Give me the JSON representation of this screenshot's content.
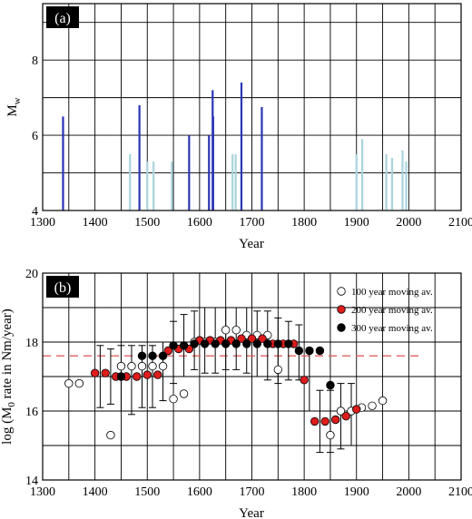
{
  "chart_data": [
    {
      "type": "bar",
      "panel_label": "(a)",
      "xlabel": "Year",
      "ylabel_main": "M",
      "ylabel_sub": "w",
      "xlim": [
        1300,
        2100
      ],
      "ylim": [
        4,
        9.5
      ],
      "xticks": [
        1300,
        1400,
        1500,
        1600,
        1700,
        1800,
        1900,
        2000,
        2100
      ],
      "yticks": [
        4,
        6,
        8
      ],
      "grid": true,
      "colors": {
        "historical": "#2a35b5",
        "instrumental": "#a9d3dc"
      },
      "series": [
        {
          "role": "historical",
          "x": [
            1339,
            1485,
            1580,
            1618,
            1625,
            1626,
            1680,
            1719
          ],
          "values": [
            6.5,
            6.8,
            6.0,
            6.0,
            7.2,
            6.5,
            7.4,
            6.75
          ]
        },
        {
          "role": "instrumental",
          "x": [
            1467,
            1500,
            1512,
            1547,
            1663,
            1669,
            1900,
            1911,
            1957,
            1968,
            1988,
            1995
          ],
          "values": [
            5.5,
            5.3,
            5.3,
            5.3,
            5.5,
            5.5,
            5.5,
            5.9,
            5.5,
            5.4,
            5.6,
            5.3
          ]
        }
      ]
    },
    {
      "type": "scatter",
      "panel_label": "(b)",
      "xlabel": "Year",
      "ylabel_main": "log (M",
      "ylabel_sub": "0",
      "ylabel_tail": " rate in Nm/year)",
      "xlim": [
        1300,
        2100
      ],
      "ylim": [
        14,
        20
      ],
      "xticks": [
        1300,
        1400,
        1500,
        1600,
        1700,
        1800,
        1900,
        2000,
        2100
      ],
      "yticks": [
        14,
        16,
        18,
        20
      ],
      "grid": true,
      "legend_position": "top-right",
      "reference_line": {
        "y": 17.6,
        "x": [
          1300,
          2020
        ],
        "color": "#e06060",
        "style": "dashed"
      },
      "errorbars": [
        {
          "x": 1410,
          "low": 16.1,
          "high": 17.9
        },
        {
          "x": 1430,
          "low": 16.2,
          "high": 17.8
        },
        {
          "x": 1450,
          "low": 16.0,
          "high": 17.9
        },
        {
          "x": 1470,
          "low": 15.9,
          "high": 17.9
        },
        {
          "x": 1490,
          "low": 16.1,
          "high": 17.9
        },
        {
          "x": 1510,
          "low": 16.1,
          "high": 17.9
        },
        {
          "x": 1530,
          "low": 16.3,
          "high": 18.0
        },
        {
          "x": 1550,
          "low": 16.8,
          "high": 18.6
        },
        {
          "x": 1570,
          "low": 17.0,
          "high": 18.8
        },
        {
          "x": 1590,
          "low": 17.2,
          "high": 18.9
        },
        {
          "x": 1610,
          "low": 17.1,
          "high": 19.0
        },
        {
          "x": 1630,
          "low": 17.1,
          "high": 19.0
        },
        {
          "x": 1650,
          "low": 17.2,
          "high": 19.0
        },
        {
          "x": 1670,
          "low": 17.2,
          "high": 19.0
        },
        {
          "x": 1690,
          "low": 17.1,
          "high": 19.0
        },
        {
          "x": 1710,
          "low": 17.0,
          "high": 18.9
        },
        {
          "x": 1730,
          "low": 16.9,
          "high": 18.9
        },
        {
          "x": 1750,
          "low": 16.8,
          "high": 18.7
        },
        {
          "x": 1770,
          "low": 16.9,
          "high": 18.6
        },
        {
          "x": 1790,
          "low": 16.9,
          "high": 18.5
        },
        {
          "x": 1810,
          "low": 16.0,
          "high": 17.8
        },
        {
          "x": 1830,
          "low": 14.8,
          "high": 16.6
        },
        {
          "x": 1850,
          "low": 14.8,
          "high": 16.6
        },
        {
          "x": 1870,
          "low": 14.9,
          "high": 16.8
        },
        {
          "x": 1890,
          "low": 15.0,
          "high": 16.8
        }
      ],
      "series": [
        {
          "name": "100 year moving av.",
          "color": "#ffffff",
          "points": [
            [
              1350,
              16.8
            ],
            [
              1370,
              16.8
            ],
            [
              1430,
              15.3
            ],
            [
              1450,
              17.3
            ],
            [
              1470,
              17.3
            ],
            [
              1490,
              17.3
            ],
            [
              1510,
              17.3
            ],
            [
              1530,
              17.3
            ],
            [
              1550,
              16.35
            ],
            [
              1570,
              16.5
            ],
            [
              1590,
              18.0
            ],
            [
              1610,
              18.0
            ],
            [
              1630,
              18.0
            ],
            [
              1650,
              18.35
            ],
            [
              1670,
              18.35
            ],
            [
              1690,
              18.2
            ],
            [
              1710,
              18.2
            ],
            [
              1730,
              18.2
            ],
            [
              1750,
              17.2
            ],
            [
              1850,
              15.3
            ],
            [
              1870,
              16.0
            ],
            [
              1890,
              16.0
            ],
            [
              1910,
              16.1
            ],
            [
              1930,
              16.15
            ],
            [
              1950,
              16.3
            ]
          ]
        },
        {
          "name": "200 year moving av.",
          "color": "#dd1c1c",
          "points": [
            [
              1400,
              17.1
            ],
            [
              1420,
              17.1
            ],
            [
              1440,
              17.0
            ],
            [
              1460,
              17.0
            ],
            [
              1480,
              17.0
            ],
            [
              1500,
              17.05
            ],
            [
              1520,
              17.05
            ],
            [
              1540,
              17.75
            ],
            [
              1560,
              17.8
            ],
            [
              1580,
              17.8
            ],
            [
              1600,
              18.05
            ],
            [
              1620,
              18.05
            ],
            [
              1640,
              18.05
            ],
            [
              1660,
              18.05
            ],
            [
              1680,
              18.1
            ],
            [
              1700,
              18.1
            ],
            [
              1720,
              18.1
            ],
            [
              1740,
              17.95
            ],
            [
              1760,
              17.95
            ],
            [
              1780,
              17.95
            ],
            [
              1800,
              16.9
            ],
            [
              1820,
              15.7
            ],
            [
              1840,
              15.7
            ],
            [
              1860,
              15.75
            ],
            [
              1880,
              15.85
            ],
            [
              1900,
              16.05
            ]
          ]
        },
        {
          "name": "300 year moving av.",
          "color": "#000000",
          "points": [
            [
              1450,
              17.0
            ],
            [
              1490,
              17.6
            ],
            [
              1510,
              17.6
            ],
            [
              1530,
              17.6
            ],
            [
              1550,
              17.9
            ],
            [
              1570,
              17.9
            ],
            [
              1590,
              17.95
            ],
            [
              1610,
              17.95
            ],
            [
              1630,
              17.95
            ],
            [
              1650,
              17.95
            ],
            [
              1670,
              17.95
            ],
            [
              1690,
              17.95
            ],
            [
              1710,
              17.95
            ],
            [
              1730,
              17.95
            ],
            [
              1750,
              17.95
            ],
            [
              1770,
              17.95
            ],
            [
              1790,
              17.75
            ],
            [
              1810,
              17.75
            ],
            [
              1830,
              17.75
            ],
            [
              1850,
              16.75
            ]
          ]
        }
      ]
    }
  ]
}
